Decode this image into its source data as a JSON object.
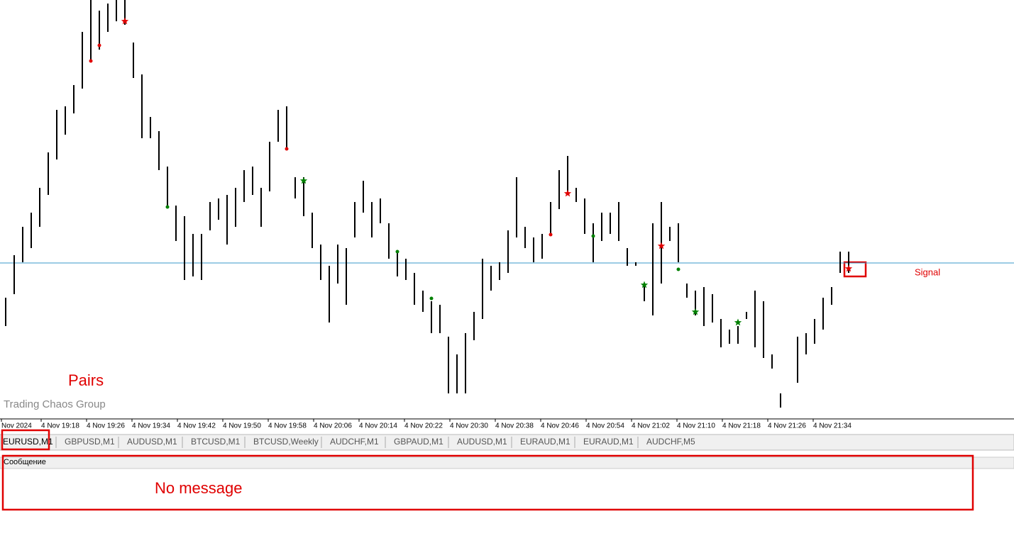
{
  "chart_data": {
    "type": "ohlc",
    "ylim": [
      0,
      600
    ],
    "highs": [
      180,
      240,
      280,
      300,
      335,
      385,
      445,
      450,
      480,
      555,
      600,
      585,
      595,
      600,
      600,
      540,
      495,
      435,
      415,
      365,
      310,
      295,
      270,
      270,
      315,
      320,
      325,
      335,
      360,
      365,
      335,
      400,
      445,
      450,
      350,
      350,
      300,
      255,
      225,
      255,
      250,
      315,
      345,
      315,
      320,
      285,
      245,
      235,
      215,
      190,
      175,
      170,
      125,
      100,
      130,
      160,
      235,
      225,
      230,
      275,
      350,
      280,
      265,
      270,
      315,
      360,
      380,
      335,
      320,
      285,
      300,
      300,
      315,
      250,
      230,
      200,
      285,
      315,
      280,
      230,
      200,
      190,
      195,
      185,
      150,
      135,
      140,
      160,
      190,
      175,
      100,
      45,
      28,
      125,
      130,
      150,
      180,
      195,
      245,
      245
    ],
    "lows": [
      140,
      185,
      230,
      250,
      280,
      325,
      375,
      410,
      440,
      475,
      515,
      530,
      555,
      570,
      565,
      490,
      405,
      405,
      360,
      310,
      260,
      205,
      210,
      205,
      275,
      290,
      255,
      280,
      315,
      325,
      280,
      330,
      400,
      390,
      320,
      295,
      250,
      205,
      145,
      200,
      170,
      265,
      300,
      265,
      285,
      235,
      210,
      205,
      170,
      160,
      130,
      130,
      45,
      45,
      45,
      120,
      150,
      190,
      205,
      215,
      265,
      250,
      230,
      235,
      270,
      305,
      330,
      315,
      270,
      230,
      260,
      270,
      260,
      225,
      225,
      175,
      155,
      200,
      260,
      285,
      180,
      155,
      140,
      145,
      110,
      115,
      115,
      150,
      110,
      95,
      80,
      25,
      28,
      60,
      100,
      115,
      135,
      170,
      215,
      215
    ],
    "level": 229,
    "level_label": "Signal",
    "markers": [
      {
        "bar": 10,
        "value": 514,
        "shape": "dot",
        "color": "#e00000"
      },
      {
        "bar": 11,
        "value": 536,
        "shape": "dot",
        "color": "#e00000"
      },
      {
        "bar": 33,
        "value": 390,
        "shape": "dot",
        "color": "#e00000"
      },
      {
        "bar": 64,
        "value": 269,
        "shape": "dot",
        "color": "#e00000"
      },
      {
        "bar": 14,
        "value": 570,
        "shape": "star",
        "color": "#e00000"
      },
      {
        "bar": 66,
        "value": 327,
        "shape": "star",
        "color": "#e00000"
      },
      {
        "bar": 77,
        "value": 253,
        "shape": "star",
        "color": "#e00000"
      },
      {
        "bar": 99,
        "value": 221,
        "shape": "star",
        "color": "#e00000"
      },
      {
        "bar": 19,
        "value": 308,
        "shape": "dot",
        "color": "#008000"
      },
      {
        "bar": 46,
        "value": 245,
        "shape": "dot",
        "color": "#008000"
      },
      {
        "bar": 50,
        "value": 179,
        "shape": "dot",
        "color": "#008000"
      },
      {
        "bar": 69,
        "value": 267,
        "shape": "dot",
        "color": "#008000"
      },
      {
        "bar": 79,
        "value": 220,
        "shape": "dot",
        "color": "#008000"
      },
      {
        "bar": 35,
        "value": 345,
        "shape": "star",
        "color": "#008000"
      },
      {
        "bar": 75,
        "value": 198,
        "shape": "star",
        "color": "#008000"
      },
      {
        "bar": 81,
        "value": 160,
        "shape": "star",
        "color": "#008000"
      },
      {
        "bar": 86,
        "value": 145,
        "shape": "star",
        "color": "#008000"
      }
    ],
    "x_labels": [
      "Nov 2024",
      "4 Nov 19:18",
      "4 Nov 19:26",
      "4 Nov 19:34",
      "4 Nov 19:42",
      "4 Nov 19:50",
      "4 Nov 19:58",
      "4 Nov 20:06",
      "4 Nov 20:14",
      "4 Nov 20:22",
      "4 Nov 20:30",
      "4 Nov 20:38",
      "4 Nov 20:46",
      "4 Nov 20:54",
      "4 Nov 21:02",
      "4 Nov 21:10",
      "4 Nov 21:18",
      "4 Nov 21:26",
      "4 Nov 21:34"
    ],
    "watermark": "Trading Chaos Group"
  },
  "annotations": {
    "pairs": "Pairs",
    "no_message": "No message"
  },
  "tabs": [
    "EURUSD,M1",
    "GBPUSD,M1",
    "AUDUSD,M1",
    "BTCUSD,M1",
    "BTCUSD,Weekly",
    "AUDCHF,M1",
    "GBPAUD,M1",
    "AUDUSD,M1",
    "EURAUD,M1",
    "EURAUD,M1",
    "AUDCHF,M5"
  ],
  "panel": {
    "header": "Сообщение"
  }
}
